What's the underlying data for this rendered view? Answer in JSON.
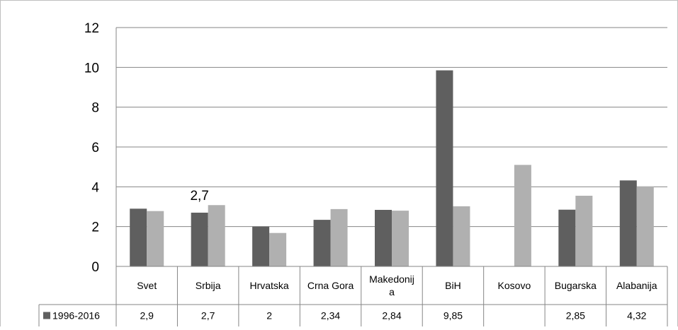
{
  "chart_data": {
    "type": "bar",
    "categories": [
      "Svet",
      "Srbija",
      "Hrvatska",
      "Crna Gora",
      "Makedonija",
      "BiH",
      "Kosovo",
      "Bugarska",
      "Alabanija"
    ],
    "category_labels": [
      [
        "Svet"
      ],
      [
        "Srbija"
      ],
      [
        "Hrvatska"
      ],
      [
        "Crna Gora"
      ],
      [
        "Makedonij",
        "a"
      ],
      [
        "BiH"
      ],
      [
        "Kosovo"
      ],
      [
        "Bugarska"
      ],
      [
        "Alabanija"
      ]
    ],
    "series": [
      {
        "name": "1996-2016",
        "color": "#5f5f5f",
        "values": [
          2.9,
          2.7,
          2.0,
          2.34,
          2.84,
          9.85,
          null,
          2.85,
          4.32
        ],
        "table_values": [
          "2,9",
          "2,7",
          "2",
          "2,34",
          "2,84",
          "9,85",
          "",
          "2,85",
          "4,32"
        ]
      },
      {
        "color": "#b0b0b0",
        "values": [
          2.78,
          3.08,
          1.68,
          2.88,
          2.8,
          3.02,
          5.1,
          3.55,
          4.02
        ]
      }
    ],
    "y_ticks": [
      "0",
      "2",
      "4",
      "6",
      "8",
      "10",
      "12"
    ],
    "ylim": [
      0,
      12
    ],
    "grid": true,
    "annotations": [
      {
        "category": "Srbija",
        "series": 0,
        "text": "2,7"
      }
    ]
  }
}
